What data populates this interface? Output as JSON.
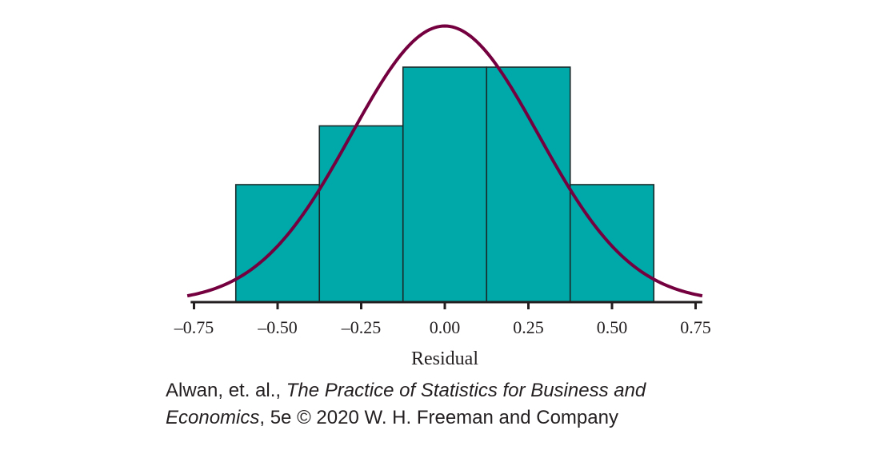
{
  "chart_data": {
    "type": "bar",
    "bin_edges": [
      -0.625,
      -0.375,
      -0.125,
      0.125,
      0.375,
      0.625
    ],
    "values": [
      2,
      3,
      4,
      4,
      2
    ],
    "curve": {
      "type": "normal",
      "mean": 0.0,
      "sd": 0.28
    },
    "xlim": [
      -0.76,
      0.77
    ],
    "ylim": [
      0,
      4.7
    ],
    "xticks": [
      -0.75,
      -0.5,
      -0.25,
      0,
      0.25,
      0.5,
      0.75
    ],
    "xtick_labels": [
      "–0.75",
      "–0.50",
      "–0.25",
      "0.00",
      "0.25",
      "0.50",
      "0.75"
    ],
    "xlabel": "Residual",
    "ylabel": "",
    "title": "",
    "grid": false,
    "colors": {
      "bar_fill": "#00a9a9",
      "bar_edge": "#1a2a2a",
      "curve": "#74003f",
      "axis": "#231f20"
    }
  },
  "caption": {
    "authors": "Alwan, et. al., ",
    "book_title_1": "The Practice of Statistics for Business and",
    "book_title_2": "Economics",
    "edition_rights": ", 5e © 2020 W. H. Freeman and Company"
  }
}
